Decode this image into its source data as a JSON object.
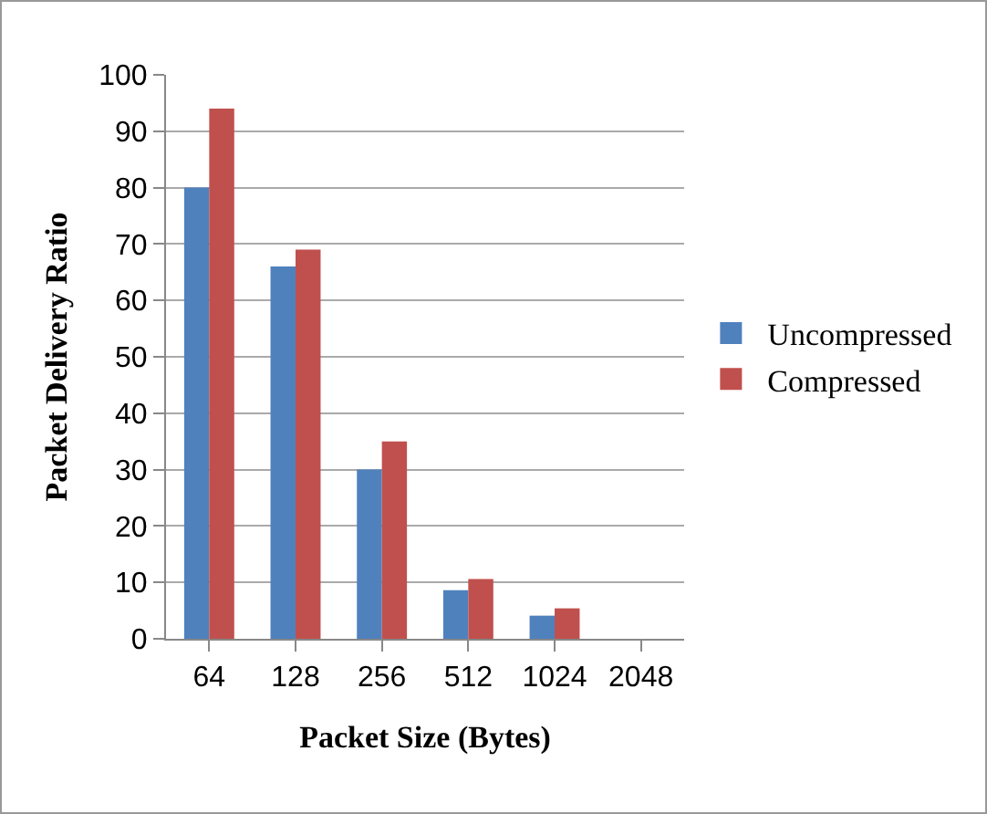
{
  "chart_data": {
    "type": "bar",
    "xlabel": "Packet Size (Bytes)",
    "ylabel": "Packet Delivery Ratio",
    "categories": [
      "64",
      "128",
      "256",
      "512",
      "1024",
      "2048"
    ],
    "series": [
      {
        "name": "Uncompressed",
        "color": "#4f81bd",
        "values": [
          80,
          66,
          30,
          8.6,
          4.1,
          0
        ]
      },
      {
        "name": "Compressed",
        "color": "#c0504d",
        "values": [
          94,
          69,
          35,
          10.6,
          5.4,
          0
        ]
      }
    ],
    "ylim": [
      0,
      100
    ],
    "yticks": [
      0,
      10,
      20,
      30,
      40,
      50,
      60,
      70,
      80,
      90,
      100
    ],
    "grid": "y",
    "legend": "right"
  }
}
